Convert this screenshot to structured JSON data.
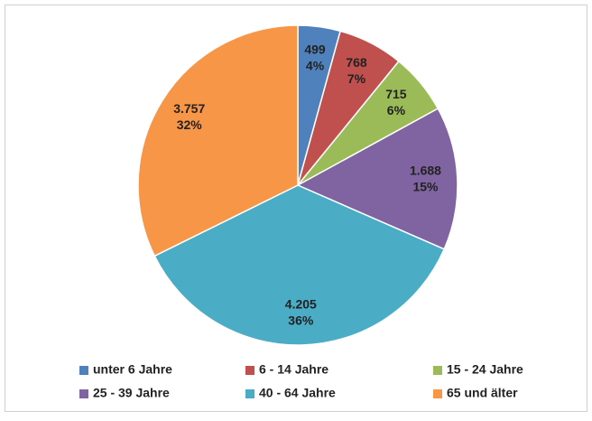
{
  "chart_data": {
    "type": "pie",
    "categories": [
      "unter 6 Jahre",
      "6 - 14 Jahre",
      "15 - 24 Jahre",
      "25 - 39 Jahre",
      "40 - 64 Jahre",
      "65 und älter"
    ],
    "values": [
      499,
      768,
      715,
      1688,
      4205,
      3757
    ],
    "value_labels": [
      "499",
      "768",
      "715",
      "1.688",
      "4.205",
      "3.757"
    ],
    "percent_labels": [
      "4%",
      "7%",
      "6%",
      "15%",
      "36%",
      "32%"
    ],
    "colors": [
      "#4f81bd",
      "#c0504d",
      "#9bbb59",
      "#8064a2",
      "#4bacc6",
      "#f79646"
    ],
    "legend": "bottom"
  }
}
